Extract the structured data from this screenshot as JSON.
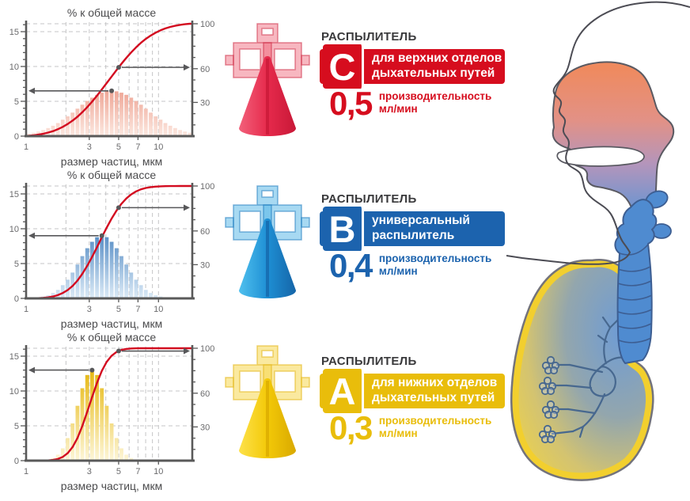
{
  "colors": {
    "red": "#d60d1e",
    "blue": "#1c63ae",
    "yellow": "#e9bd0b",
    "header_text": "#3a3a3c",
    "axis": "#595959",
    "tick_text": "#6b6b6d",
    "grid": "#c5c5c7",
    "curve": "#d30b20",
    "arrow": "#58585a"
  },
  "chart_data": [
    {
      "type": "bar",
      "id": "C",
      "title": "% к общей массе",
      "xlabel": "размер частиц, мкм",
      "x_scale": "log",
      "x_ticks": [
        1,
        3,
        5,
        7,
        10
      ],
      "y_left_ticks": [
        0,
        5,
        10,
        15
      ],
      "y_right_ticks": [
        30,
        60,
        100
      ],
      "y_left_max": 16.4,
      "y_right_max": 100,
      "grid": true,
      "bar_top_color": "#e06048",
      "bar_bottom_color": "#fce8e0",
      "marker_x_um": 5,
      "arrow_left_peak_percent": 6.5,
      "arrow_right_cumulative_percent_at_5um": 58,
      "bars": [
        0.35,
        0.48,
        0.66,
        0.88,
        1.16,
        1.49,
        1.88,
        2.36,
        2.84,
        3.38,
        3.94,
        4.51,
        5.05,
        5.52,
        5.93,
        6.24,
        6.43,
        6.5,
        6.43,
        6.24,
        5.93,
        5.52,
        5.05,
        4.51,
        3.94,
        3.38,
        2.84,
        2.36,
        1.88,
        1.49,
        1.16,
        0.88,
        0.66,
        0.48
      ]
    },
    {
      "type": "bar",
      "id": "B",
      "title": "% к общей массе",
      "xlabel": "размер частиц, мкм",
      "x_scale": "log",
      "x_ticks": [
        1,
        3,
        5,
        7,
        10
      ],
      "y_left_ticks": [
        0,
        5,
        10,
        15
      ],
      "y_right_ticks": [
        30,
        60,
        100
      ],
      "y_left_max": 16.4,
      "y_right_max": 100,
      "grid": true,
      "bar_top_color": "#1a62ae",
      "bar_bottom_color": "#dcebf7",
      "marker_x_um": 5,
      "arrow_left_peak_percent": 9,
      "arrow_right_cumulative_percent_at_5um": 75,
      "bars": [
        0.03,
        0.07,
        0.14,
        0.27,
        0.45,
        0.78,
        1.22,
        1.9,
        2.68,
        3.7,
        4.86,
        6.07,
        7.21,
        8.13,
        8.78,
        9.0,
        8.78,
        8.13,
        7.21,
        6.07,
        4.86,
        3.7,
        2.68,
        1.9,
        1.22,
        0.78,
        0.45,
        0.27,
        0.14,
        0.07,
        0.03,
        0.02,
        0.01,
        0.01
      ]
    },
    {
      "type": "bar",
      "id": "A",
      "title": "% к общей массе",
      "xlabel": "размер частиц, мкм",
      "x_scale": "log",
      "x_ticks": [
        1,
        3,
        5,
        7,
        10
      ],
      "y_left_ticks": [
        0,
        5,
        10,
        15
      ],
      "y_right_ticks": [
        30,
        60,
        100
      ],
      "y_left_max": 16.4,
      "y_right_max": 100,
      "grid": true,
      "bar_top_color": "#e6b60a",
      "bar_bottom_color": "#fdf6d8",
      "marker_x_um": 5,
      "arrow_left_peak_percent": 13,
      "arrow_right_cumulative_percent_at_5um": 93,
      "bars": [
        0,
        0.01,
        0.02,
        0.05,
        0.14,
        0.37,
        0.85,
        1.76,
        3.24,
        5.34,
        7.88,
        10.4,
        12.3,
        13.0,
        12.3,
        10.4,
        7.88,
        5.34,
        3.24,
        1.76,
        0.85,
        0.37,
        0.14,
        0.05,
        0.02,
        0.01,
        0,
        0,
        0,
        0,
        0,
        0,
        0,
        0
      ]
    }
  ],
  "sprayers": [
    {
      "header": "РАСПЫЛИТЕЛЬ",
      "letter": "C",
      "line1": "для верхних отделов",
      "line2": "дыхательных путей",
      "rate": "0,5",
      "rate_caption": "производительность",
      "rate_unit": "мл/мин",
      "accent": "#d60d1e",
      "icon": {
        "name": "nebulizer-red-icon",
        "bracket_fill": "rgba(238,95,115,0.45)",
        "bracket_stroke": "rgba(205,45,70,0.55)",
        "cone_light": "#f2607a",
        "cone_main": "#e62a4c",
        "cone_dark": "#c81837"
      }
    },
    {
      "header": "РАСПЫЛИТЕЛЬ",
      "letter": "B",
      "line1": "универсальный",
      "line2": "распылитель",
      "rate": "0,4",
      "rate_caption": "производительность",
      "rate_unit": "мл/мин",
      "accent": "#1c63ae",
      "icon": {
        "name": "nebulizer-blue-icon",
        "bracket_fill": "rgba(80,180,230,0.5)",
        "bracket_stroke": "rgba(30,120,190,0.55)",
        "cone_light": "#4fc0ee",
        "cone_main": "#1e8fd4",
        "cone_dark": "#1565a8"
      }
    },
    {
      "header": "РАСПЫЛИТЕЛЬ",
      "letter": "A",
      "line1": "для нижних отделов",
      "line2": "дыхательных путей",
      "rate": "0,3",
      "rate_caption": "производительность",
      "rate_unit": "мл/мин",
      "accent": "#e9bd0b",
      "icon": {
        "name": "nebulizer-yellow-icon",
        "bracket_fill": "rgba(246,215,80,0.55)",
        "bracket_stroke": "rgba(228,185,30,0.6)",
        "cone_light": "#fde14a",
        "cone_main": "#f3c908",
        "cone_dark": "#d9a900"
      }
    }
  ],
  "anatomy": {
    "name": "respiratory-tract-diagram",
    "outline": "#4c4c54",
    "nasal_top": "#ef8a5e",
    "nasal_mid": "#b495bb",
    "airway_blue": "#4f8bd0",
    "airway_stroke": "#3d5e92",
    "lung_rim_yellow": "#f2cf2e",
    "lung_outline": "#73737c",
    "lung_center_blue": "#6f9cd4",
    "lung_edge_yellow": "#e6ce55",
    "bronchi": "#47688f"
  }
}
